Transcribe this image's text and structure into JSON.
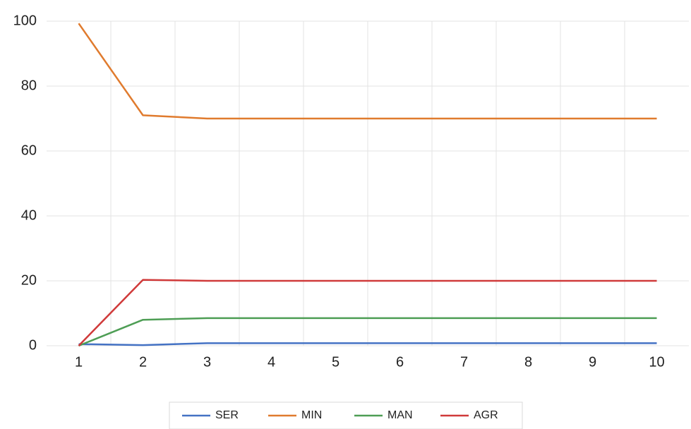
{
  "chart_data": {
    "type": "line",
    "categories": [
      "1",
      "2",
      "3",
      "4",
      "5",
      "6",
      "7",
      "8",
      "9",
      "10"
    ],
    "series": [
      {
        "name": "SER",
        "color": "#4472c4",
        "values": [
          0.5,
          0.2,
          0.8,
          0.8,
          0.8,
          0.8,
          0.8,
          0.8,
          0.8,
          0.8
        ]
      },
      {
        "name": "MIN",
        "color": "#e07b2e",
        "values": [
          99.3,
          71,
          70,
          70,
          70,
          70,
          70,
          70,
          70,
          70
        ]
      },
      {
        "name": "MAN",
        "color": "#4e9e55",
        "values": [
          0,
          8,
          8.5,
          8.5,
          8.5,
          8.5,
          8.5,
          8.5,
          8.5,
          8.5
        ]
      },
      {
        "name": "AGR",
        "color": "#d03a3a",
        "values": [
          0,
          20.3,
          20,
          20,
          20,
          20,
          20,
          20,
          20,
          20
        ]
      }
    ],
    "ylim": [
      0,
      100
    ],
    "yticks": [
      0,
      20,
      40,
      60,
      80,
      100
    ],
    "grid": true,
    "legend": "bottom"
  }
}
